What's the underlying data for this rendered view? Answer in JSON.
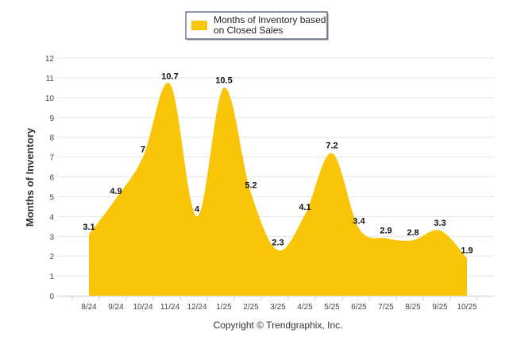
{
  "chart_data": {
    "type": "area",
    "title": "",
    "xlabel": "",
    "ylabel": "Months of Inventory",
    "ylim": [
      0,
      12
    ],
    "yticks": [
      0,
      1,
      2,
      3,
      4,
      5,
      6,
      7,
      8,
      9,
      10,
      11,
      12
    ],
    "grid": true,
    "legend_position": "top-center",
    "categories": [
      "8/24",
      "9/24",
      "10/24",
      "11/24",
      "12/24",
      "1/25",
      "2/25",
      "3/25",
      "4/25",
      "5/25",
      "6/25",
      "7/25",
      "8/25",
      "9/25",
      "10/25"
    ],
    "series": [
      {
        "name": "Months of Inventory based on Closed Sales",
        "color": "#F8C508",
        "values": [
          3.1,
          4.9,
          7,
          10.7,
          4,
          10.5,
          5.2,
          2.3,
          4.1,
          7.2,
          3.4,
          2.9,
          2.8,
          3.3,
          1.9
        ]
      }
    ],
    "legend_lines": [
      "Months of Inventory based",
      "on Closed Sales"
    ],
    "footer": "Copyright © Trendgraphix, Inc."
  }
}
